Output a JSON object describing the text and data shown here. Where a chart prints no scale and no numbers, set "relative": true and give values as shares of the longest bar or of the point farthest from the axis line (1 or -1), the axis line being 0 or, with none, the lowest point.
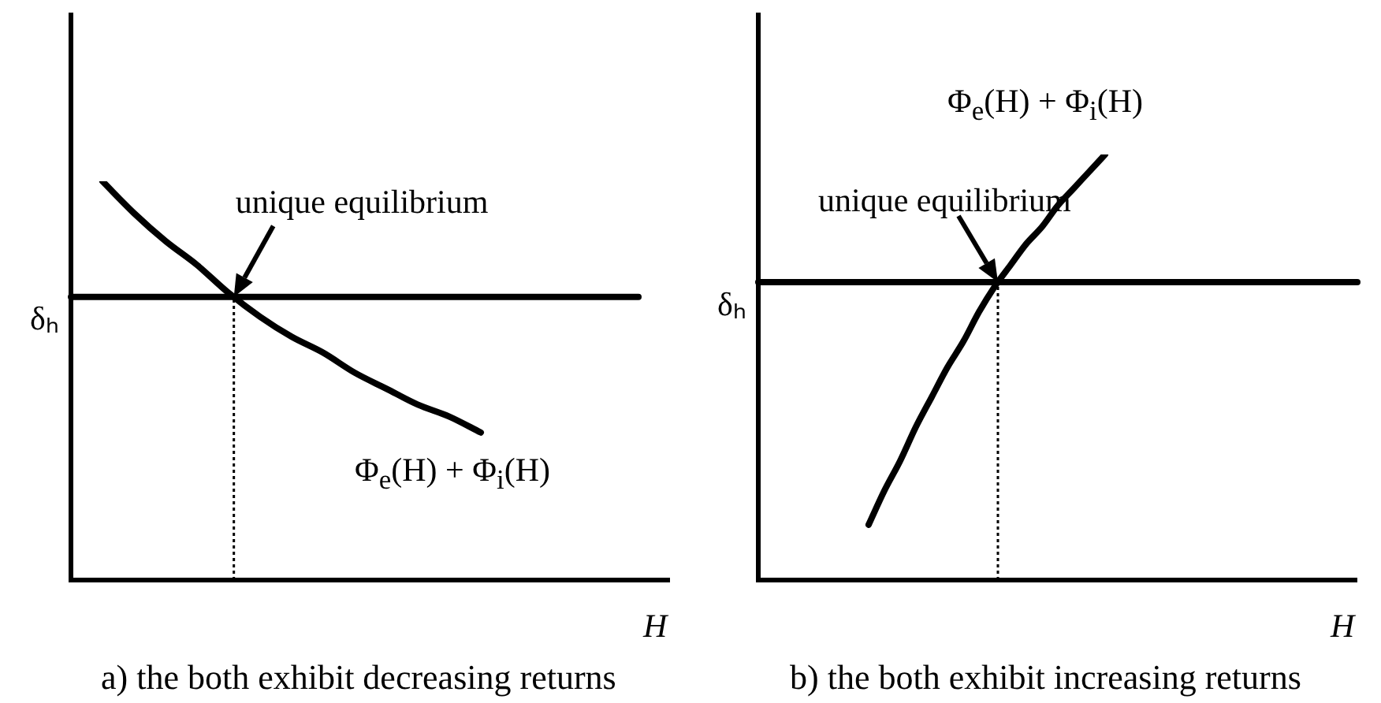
{
  "chart_data": [
    {
      "type": "line",
      "title": "a) the both exhibit decreasing returns",
      "xlabel": "H",
      "relative": true,
      "marker": "none",
      "annotations": [
        "unique equilibrium"
      ],
      "categories": [
        null,
        null,
        null,
        null,
        null,
        null,
        null,
        null,
        null,
        null,
        null,
        null,
        null,
        null,
        null,
        null,
        null,
        null,
        null,
        null
      ],
      "series": [
        {
          "name": "Φ$_{e}$(H) + Φ$_{i}$(H)",
          "color": "#000000",
          "values": [
            null,
            1,
            0.92,
            0.85,
            0.79,
            0.72,
            0.66,
            0.61,
            0.57,
            0.52,
            0.48,
            0.44,
            0.41,
            0.37,
            null,
            null,
            null,
            null,
            null,
            null
          ]
        },
        {
          "name": "δₕ",
          "color": "#000000",
          "values": [
            0.71,
            0.71,
            0.71,
            0.71,
            0.71,
            0.71,
            0.71,
            0.71,
            0.71,
            0.71,
            0.71,
            0.71,
            0.71,
            0.71,
            0.71,
            0.71,
            0.71,
            0.71,
            0.71,
            null
          ]
        }
      ]
    },
    {
      "type": "line",
      "title": "b) the both exhibit increasing returns",
      "xlabel": "H",
      "relative": true,
      "marker": "none",
      "annotations": [
        "unique equilibrium"
      ],
      "categories": [
        null,
        null,
        null,
        null,
        null,
        null,
        null,
        null,
        null,
        null,
        null,
        null,
        null,
        null,
        null,
        null,
        null,
        null,
        null,
        null,
        null,
        null,
        null,
        null,
        null,
        null,
        null,
        null,
        null,
        null,
        null,
        null,
        null,
        null,
        null,
        null,
        null,
        null,
        null
      ],
      "series": [
        {
          "name": "Φ$_{e}$(H) + Φ$_{i}$(H)",
          "color": "#000000",
          "values": [
            null,
            null,
            null,
            null,
            null,
            null,
            null,
            0.13,
            0.21,
            0.28,
            0.36,
            0.43,
            0.5,
            0.56,
            0.63,
            0.69,
            0.74,
            0.79,
            0.83,
            0.88,
            0.92,
            0.96,
            1,
            null,
            null,
            null,
            null,
            null,
            null,
            null,
            null,
            null,
            null,
            null,
            null,
            null,
            null,
            null,
            null
          ]
        },
        {
          "name": "δₕ",
          "color": "#000000",
          "values": [
            0.7,
            0.7,
            0.7,
            0.7,
            0.7,
            0.7,
            0.7,
            0.7,
            0.7,
            0.7,
            0.7,
            0.7,
            0.7,
            0.7,
            0.7,
            0.7,
            0.7,
            0.7,
            0.7,
            0.7,
            0.7,
            0.7,
            0.7,
            0.7,
            0.7,
            0.7,
            0.7,
            0.7,
            0.7,
            0.7,
            0.7,
            0.7,
            0.7,
            0.7,
            0.7,
            0.7,
            0.7,
            0.7,
            0.7
          ]
        }
      ]
    }
  ]
}
